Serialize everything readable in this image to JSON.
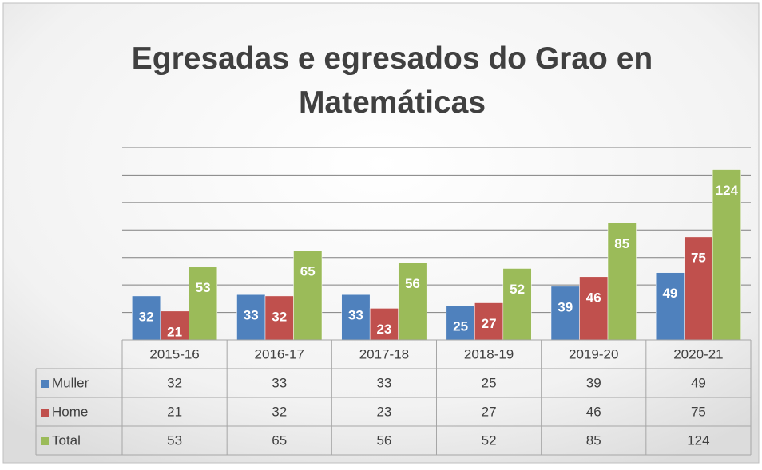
{
  "chart_data": {
    "type": "bar",
    "title": "Egresadas e egresados do Grao en Matemáticas",
    "categories": [
      "2015-16",
      "2016-17",
      "2017-18",
      "2018-19",
      "2019-20",
      "2020-21"
    ],
    "series": [
      {
        "name": "Muller",
        "color": "#4f81bd",
        "values": [
          32,
          33,
          33,
          25,
          39,
          49
        ]
      },
      {
        "name": "Home",
        "color": "#c0504d",
        "values": [
          21,
          32,
          23,
          27,
          46,
          75
        ]
      },
      {
        "name": "Total",
        "color": "#9bbb59",
        "values": [
          53,
          65,
          56,
          52,
          85,
          124
        ]
      }
    ],
    "ylim": [
      0,
      140
    ],
    "yticks": [
      0,
      20,
      40,
      60,
      80,
      100,
      120,
      140
    ],
    "grid": true,
    "data_table": true
  }
}
